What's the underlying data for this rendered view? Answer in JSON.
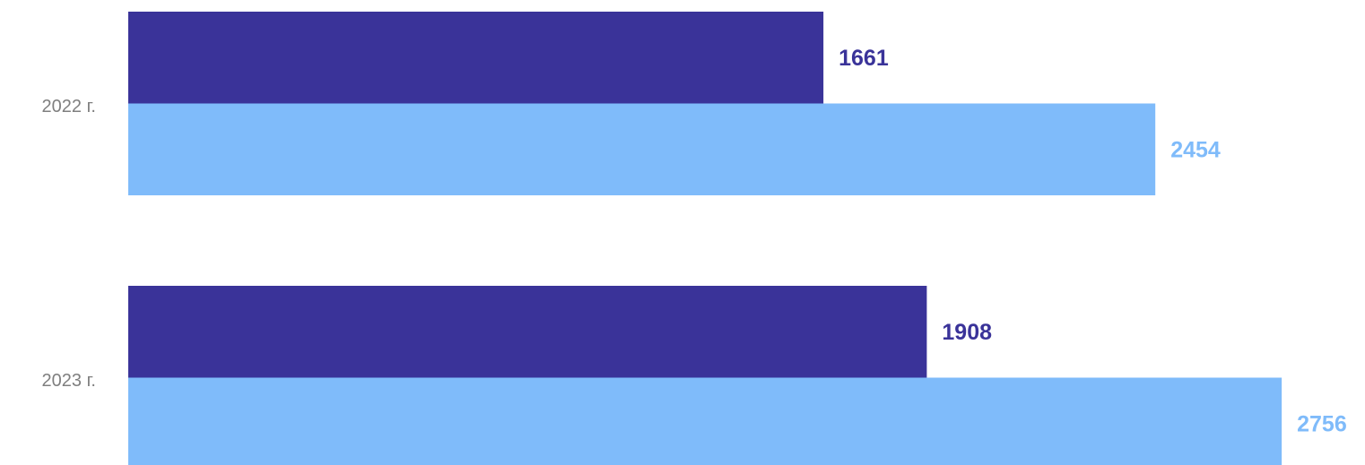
{
  "chart_data": {
    "type": "bar",
    "orientation": "horizontal",
    "categories": [
      "2022 г.",
      "2023 г."
    ],
    "series": [
      {
        "color": "#3a3399",
        "values": [
          1661,
          1908
        ]
      },
      {
        "color": "#7fbbfa",
        "values": [
          2454,
          2756
        ]
      }
    ],
    "xlim": [
      0,
      3000
    ]
  }
}
